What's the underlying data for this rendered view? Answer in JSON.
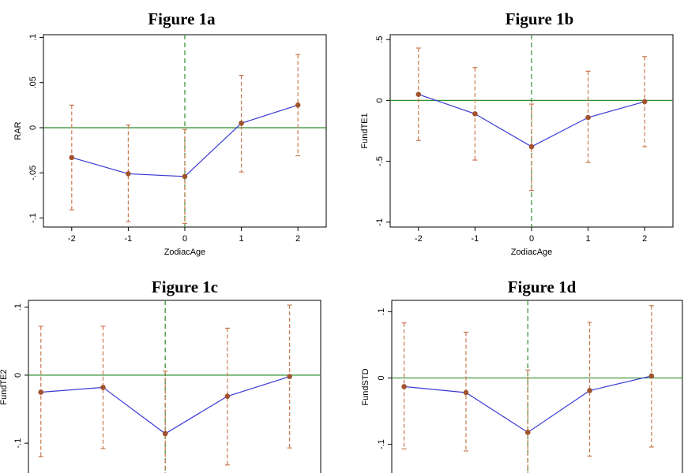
{
  "colors": {
    "line": "#3a3ad6",
    "marker": "#a0522d",
    "ci": "#c8794f",
    "zero": "#2e8b2e",
    "vline": "#2e8b2e"
  },
  "chart_data": [
    {
      "type": "line",
      "title": "Figure 1a",
      "xlabel": "ZodiacAge",
      "ylabel": "RAR",
      "x": [
        -2,
        -1,
        0,
        1,
        2
      ],
      "xticks": [
        "-2",
        "-1",
        "0",
        "1",
        "2"
      ],
      "xlim": [
        -2.5,
        2.5
      ],
      "ylim": [
        -0.11,
        0.103
      ],
      "yticks": [
        {
          "v": 0.1,
          "label": ".1"
        },
        {
          "v": 0.05,
          "label": ".05"
        },
        {
          "v": 0,
          "label": "0"
        },
        {
          "v": -0.05,
          "label": "-.05"
        },
        {
          "v": -0.1,
          "label": "-.1"
        }
      ],
      "values": [
        -0.033,
        -0.051,
        -0.054,
        0.005,
        0.025
      ],
      "ci_low": [
        -0.091,
        -0.104,
        -0.106,
        -0.049,
        -0.031
      ],
      "ci_high": [
        0.025,
        0.003,
        -0.002,
        0.058,
        0.081
      ],
      "hline": 0,
      "vline": 0
    },
    {
      "type": "line",
      "title": "Figure 1b",
      "xlabel": "ZodiacAge",
      "ylabel": "FundTE1",
      "x": [
        -2,
        -1,
        0,
        1,
        2
      ],
      "xticks": [
        "-2",
        "-1",
        "0",
        "1",
        "2"
      ],
      "xlim": [
        -2.5,
        2.5
      ],
      "ylim": [
        -1.04,
        0.54
      ],
      "yticks": [
        {
          "v": 0.5,
          "label": ".5"
        },
        {
          "v": 0,
          "label": "0"
        },
        {
          "v": -0.5,
          "label": "-.5"
        },
        {
          "v": -1,
          "label": "-1"
        }
      ],
      "values": [
        0.05,
        -0.11,
        -0.38,
        -0.14,
        -0.01
      ],
      "ci_low": [
        -0.33,
        -0.49,
        -0.74,
        -0.51,
        -0.38
      ],
      "ci_high": [
        0.43,
        0.27,
        -0.03,
        0.24,
        0.36
      ],
      "hline": 0,
      "vline": 0
    },
    {
      "type": "line",
      "title": "Figure 1c",
      "xlabel": "",
      "ylabel": "FundTE2",
      "x": [
        -2,
        -1,
        0,
        1,
        2
      ],
      "xticks": [],
      "xlim": [
        -2.2,
        2.5
      ],
      "ylim": [
        -0.167,
        0.11
      ],
      "yticks": [
        {
          "v": 0.1,
          "label": ".1"
        },
        {
          "v": 0,
          "label": "0"
        },
        {
          "v": -0.1,
          "label": "-.1"
        }
      ],
      "values": [
        -0.025,
        -0.018,
        -0.086,
        -0.031,
        -0.002
      ],
      "ci_low": [
        -0.12,
        -0.108,
        -0.167,
        -0.132,
        -0.107
      ],
      "ci_high": [
        0.072,
        0.072,
        0.006,
        0.069,
        0.103
      ],
      "hline": 0,
      "vline": 0
    },
    {
      "type": "line",
      "title": "Figure 1d",
      "xlabel": "",
      "ylabel": "FundSTD",
      "x": [
        -2,
        -1,
        0,
        1,
        2
      ],
      "xticks": [],
      "xlim": [
        -2.2,
        2.5
      ],
      "ylim": [
        -0.167,
        0.117
      ],
      "yticks": [
        {
          "v": 0.1,
          "label": ".1"
        },
        {
          "v": 0,
          "label": "0"
        },
        {
          "v": -0.1,
          "label": "-.1"
        }
      ],
      "values": [
        -0.013,
        -0.022,
        -0.082,
        -0.019,
        0.003
      ],
      "ci_low": [
        -0.107,
        -0.11,
        -0.167,
        -0.118,
        -0.104
      ],
      "ci_high": [
        0.083,
        0.069,
        0.012,
        0.084,
        0.109
      ],
      "hline": 0,
      "vline": 0
    }
  ]
}
